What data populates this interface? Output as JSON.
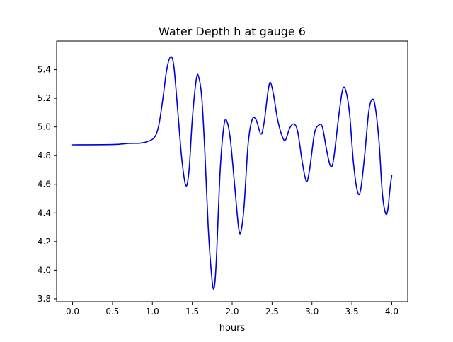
{
  "chart_data": {
    "type": "line",
    "title": "Water Depth h at gauge 6",
    "xlabel": "hours",
    "ylabel": "",
    "xlim": [
      -0.2,
      4.2
    ],
    "ylim": [
      3.78,
      5.6
    ],
    "grid": false,
    "x_ticks": [
      0.0,
      0.5,
      1.0,
      1.5,
      2.0,
      2.5,
      3.0,
      3.5,
      4.0
    ],
    "x_tick_labels": [
      "0.0",
      "0.5",
      "1.0",
      "1.5",
      "2.0",
      "2.5",
      "3.0",
      "3.5",
      "4.0"
    ],
    "y_ticks": [
      3.8,
      4.0,
      4.2,
      4.4,
      4.6,
      4.8,
      5.0,
      5.2,
      5.4
    ],
    "y_tick_labels": [
      "3.8",
      "4.0",
      "4.2",
      "4.4",
      "4.6",
      "4.8",
      "5.0",
      "5.2",
      "5.4"
    ],
    "series": [
      {
        "color": "#0000dd",
        "points": [
          [
            0.0,
            4.875
          ],
          [
            0.5,
            4.877
          ],
          [
            0.7,
            4.885
          ],
          [
            0.85,
            4.887
          ],
          [
            0.95,
            4.9
          ],
          [
            1.03,
            4.93
          ],
          [
            1.08,
            5.01
          ],
          [
            1.13,
            5.19
          ],
          [
            1.18,
            5.4
          ],
          [
            1.23,
            5.49
          ],
          [
            1.27,
            5.42
          ],
          [
            1.32,
            5.1
          ],
          [
            1.37,
            4.77
          ],
          [
            1.42,
            4.59
          ],
          [
            1.46,
            4.7
          ],
          [
            1.5,
            5.05
          ],
          [
            1.55,
            5.33
          ],
          [
            1.58,
            5.35
          ],
          [
            1.62,
            5.2
          ],
          [
            1.66,
            4.8
          ],
          [
            1.7,
            4.3
          ],
          [
            1.74,
            3.98
          ],
          [
            1.77,
            3.87
          ],
          [
            1.8,
            4.05
          ],
          [
            1.85,
            4.7
          ],
          [
            1.9,
            5.02
          ],
          [
            1.94,
            5.03
          ],
          [
            1.98,
            4.9
          ],
          [
            2.03,
            4.6
          ],
          [
            2.08,
            4.3
          ],
          [
            2.11,
            4.27
          ],
          [
            2.15,
            4.45
          ],
          [
            2.2,
            4.88
          ],
          [
            2.25,
            5.05
          ],
          [
            2.3,
            5.05
          ],
          [
            2.36,
            4.95
          ],
          [
            2.4,
            5.03
          ],
          [
            2.45,
            5.25
          ],
          [
            2.48,
            5.31
          ],
          [
            2.52,
            5.22
          ],
          [
            2.57,
            5.05
          ],
          [
            2.63,
            4.93
          ],
          [
            2.67,
            4.91
          ],
          [
            2.72,
            4.99
          ],
          [
            2.77,
            5.02
          ],
          [
            2.82,
            4.97
          ],
          [
            2.88,
            4.75
          ],
          [
            2.93,
            4.62
          ],
          [
            2.97,
            4.7
          ],
          [
            3.03,
            4.95
          ],
          [
            3.08,
            5.01
          ],
          [
            3.13,
            5.0
          ],
          [
            3.18,
            4.85
          ],
          [
            3.23,
            4.73
          ],
          [
            3.27,
            4.77
          ],
          [
            3.33,
            5.05
          ],
          [
            3.38,
            5.25
          ],
          [
            3.42,
            5.26
          ],
          [
            3.47,
            5.1
          ],
          [
            3.52,
            4.75
          ],
          [
            3.57,
            4.55
          ],
          [
            3.61,
            4.56
          ],
          [
            3.66,
            4.8
          ],
          [
            3.71,
            5.1
          ],
          [
            3.75,
            5.19
          ],
          [
            3.79,
            5.15
          ],
          [
            3.84,
            4.9
          ],
          [
            3.88,
            4.55
          ],
          [
            3.92,
            4.4
          ],
          [
            3.95,
            4.42
          ],
          [
            3.98,
            4.58
          ],
          [
            4.0,
            4.66
          ]
        ]
      }
    ]
  }
}
